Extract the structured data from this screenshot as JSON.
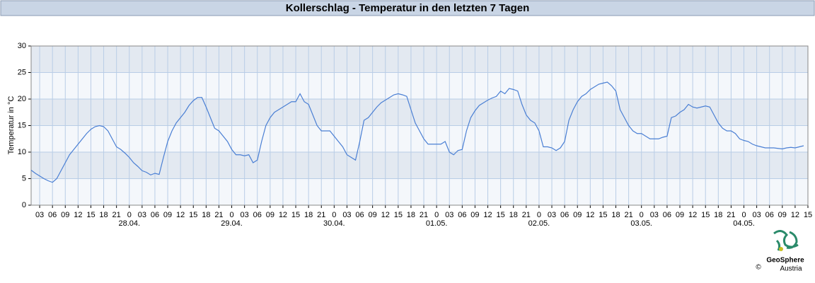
{
  "chart_data": {
    "type": "line",
    "title": "Kollerschlag - Temperatur in den letzten 7 Tagen",
    "ylabel": "Temperatur in °C",
    "color": "#4a7fd4",
    "grid": true,
    "band_colors": [
      "#f4f7fb",
      "#e3e9f1"
    ],
    "ylim": [
      0,
      30
    ],
    "yticks": [
      0,
      5,
      10,
      15,
      20,
      25,
      30
    ],
    "xlim": [
      1,
      183
    ],
    "xticks": [
      {
        "value": 3,
        "label": "03"
      },
      {
        "value": 6,
        "label": "06"
      },
      {
        "value": 9,
        "label": "09"
      },
      {
        "value": 12,
        "label": "12"
      },
      {
        "value": 15,
        "label": "15"
      },
      {
        "value": 18,
        "label": "18"
      },
      {
        "value": 21,
        "label": "21"
      },
      {
        "value": 24,
        "label": "0"
      },
      {
        "value": 27,
        "label": "03"
      },
      {
        "value": 30,
        "label": "06"
      },
      {
        "value": 33,
        "label": "09"
      },
      {
        "value": 36,
        "label": "12"
      },
      {
        "value": 39,
        "label": "15"
      },
      {
        "value": 42,
        "label": "18"
      },
      {
        "value": 45,
        "label": "21"
      },
      {
        "value": 48,
        "label": "0"
      },
      {
        "value": 51,
        "label": "03"
      },
      {
        "value": 54,
        "label": "06"
      },
      {
        "value": 57,
        "label": "09"
      },
      {
        "value": 60,
        "label": "12"
      },
      {
        "value": 63,
        "label": "15"
      },
      {
        "value": 66,
        "label": "18"
      },
      {
        "value": 69,
        "label": "21"
      },
      {
        "value": 72,
        "label": "0"
      },
      {
        "value": 75,
        "label": "03"
      },
      {
        "value": 78,
        "label": "06"
      },
      {
        "value": 81,
        "label": "09"
      },
      {
        "value": 84,
        "label": "12"
      },
      {
        "value": 87,
        "label": "15"
      },
      {
        "value": 90,
        "label": "18"
      },
      {
        "value": 93,
        "label": "21"
      },
      {
        "value": 96,
        "label": "0"
      },
      {
        "value": 99,
        "label": "03"
      },
      {
        "value": 102,
        "label": "06"
      },
      {
        "value": 105,
        "label": "09"
      },
      {
        "value": 108,
        "label": "12"
      },
      {
        "value": 111,
        "label": "15"
      },
      {
        "value": 114,
        "label": "18"
      },
      {
        "value": 117,
        "label": "21"
      },
      {
        "value": 120,
        "label": "0"
      },
      {
        "value": 123,
        "label": "03"
      },
      {
        "value": 126,
        "label": "06"
      },
      {
        "value": 129,
        "label": "09"
      },
      {
        "value": 132,
        "label": "12"
      },
      {
        "value": 135,
        "label": "15"
      },
      {
        "value": 138,
        "label": "18"
      },
      {
        "value": 141,
        "label": "21"
      },
      {
        "value": 144,
        "label": "0"
      },
      {
        "value": 147,
        "label": "03"
      },
      {
        "value": 150,
        "label": "06"
      },
      {
        "value": 153,
        "label": "09"
      },
      {
        "value": 156,
        "label": "12"
      },
      {
        "value": 159,
        "label": "15"
      },
      {
        "value": 162,
        "label": "18"
      },
      {
        "value": 165,
        "label": "21"
      },
      {
        "value": 168,
        "label": "0"
      },
      {
        "value": 171,
        "label": "03"
      },
      {
        "value": 174,
        "label": "06"
      },
      {
        "value": 177,
        "label": "09"
      },
      {
        "value": 180,
        "label": "12"
      },
      {
        "value": 183,
        "label": "15"
      }
    ],
    "date_labels": [
      {
        "value": 24,
        "label": "28.04."
      },
      {
        "value": 48,
        "label": "29.04."
      },
      {
        "value": 72,
        "label": "30.04."
      },
      {
        "value": 96,
        "label": "01.05."
      },
      {
        "value": 120,
        "label": "02.05."
      },
      {
        "value": 144,
        "label": "03.05."
      },
      {
        "value": 168,
        "label": "04.05."
      }
    ],
    "x": [
      1,
      2,
      3,
      4,
      5,
      6,
      7,
      8,
      9,
      10,
      11,
      12,
      13,
      14,
      15,
      16,
      17,
      18,
      19,
      20,
      21,
      22,
      23,
      24,
      25,
      26,
      27,
      28,
      29,
      30,
      31,
      32,
      33,
      34,
      35,
      36,
      37,
      38,
      39,
      40,
      41,
      42,
      43,
      44,
      45,
      46,
      47,
      48,
      49,
      50,
      51,
      52,
      53,
      54,
      55,
      56,
      57,
      58,
      59,
      60,
      61,
      62,
      63,
      64,
      65,
      66,
      67,
      68,
      69,
      70,
      71,
      72,
      73,
      74,
      75,
      76,
      77,
      78,
      79,
      80,
      81,
      82,
      83,
      84,
      85,
      86,
      87,
      88,
      89,
      90,
      91,
      92,
      93,
      94,
      95,
      96,
      97,
      98,
      99,
      100,
      101,
      102,
      103,
      104,
      105,
      106,
      107,
      108,
      109,
      110,
      111,
      112,
      113,
      114,
      115,
      116,
      117,
      118,
      119,
      120,
      121,
      122,
      123,
      124,
      125,
      126,
      127,
      128,
      129,
      130,
      131,
      132,
      133,
      134,
      135,
      136,
      137,
      138,
      139,
      140,
      141,
      142,
      143,
      144,
      145,
      146,
      147,
      148,
      149,
      150,
      151,
      152,
      153,
      154,
      155,
      156,
      157,
      158,
      159,
      160,
      161,
      162,
      163,
      164,
      165,
      166,
      167,
      168,
      169,
      170,
      171,
      172,
      173,
      174,
      175,
      176,
      177,
      178,
      179,
      180,
      181,
      182
    ],
    "values": [
      6.6,
      6.0,
      5.5,
      5.0,
      4.6,
      4.3,
      5.0,
      6.5,
      8.0,
      9.5,
      10.5,
      11.5,
      12.5,
      13.5,
      14.3,
      14.8,
      15.0,
      14.8,
      14.0,
      12.5,
      11.0,
      10.5,
      9.8,
      9.0,
      8.0,
      7.3,
      6.5,
      6.2,
      5.7,
      6.0,
      5.8,
      9.0,
      12.0,
      14.0,
      15.5,
      16.5,
      17.5,
      18.8,
      19.7,
      20.3,
      20.3,
      18.5,
      16.5,
      14.5,
      14.0,
      13.0,
      12.0,
      10.5,
      9.5,
      9.5,
      9.3,
      9.5,
      8.0,
      8.5,
      12.0,
      15.0,
      16.5,
      17.5,
      18.0,
      18.5,
      19.0,
      19.5,
      19.5,
      21.0,
      19.5,
      19.0,
      17.0,
      15.0,
      14.0,
      14.0,
      14.0,
      13.0,
      12.0,
      11.0,
      9.5,
      9.0,
      8.5,
      12.0,
      16.0,
      16.5,
      17.5,
      18.5,
      19.3,
      19.8,
      20.3,
      20.8,
      21.0,
      20.8,
      20.5,
      18.0,
      15.5,
      14.0,
      12.5,
      11.5,
      11.5,
      11.5,
      11.5,
      12.0,
      10.0,
      9.5,
      10.3,
      10.5,
      14.0,
      16.5,
      17.8,
      18.8,
      19.3,
      19.8,
      20.2,
      20.5,
      21.5,
      21.0,
      22.0,
      21.8,
      21.5,
      19.0,
      17.0,
      16.0,
      15.5,
      14.0,
      11.0,
      11.0,
      10.8,
      10.3,
      10.8,
      12.0,
      16.0,
      18.0,
      19.5,
      20.5,
      21.0,
      21.8,
      22.3,
      22.8,
      23.0,
      23.2,
      22.5,
      21.5,
      18.0,
      16.5,
      15.0,
      14.0,
      13.5,
      13.5,
      13.0,
      12.5,
      12.5,
      12.5,
      12.8,
      13.0,
      16.5,
      16.8,
      17.5,
      18.0,
      19.0,
      18.5,
      18.3,
      18.5,
      18.7,
      18.5,
      17.0,
      15.5,
      14.5,
      14.0,
      14.0,
      13.5,
      12.5,
      12.2,
      12.0,
      11.5,
      11.2,
      11.0,
      10.8,
      10.8,
      10.8,
      10.7,
      10.6,
      10.8,
      10.9,
      10.8,
      11.0,
      11.2
    ],
    "logo": {
      "name": "GeoSphere",
      "sub": "Austria",
      "copyright": "©"
    }
  }
}
